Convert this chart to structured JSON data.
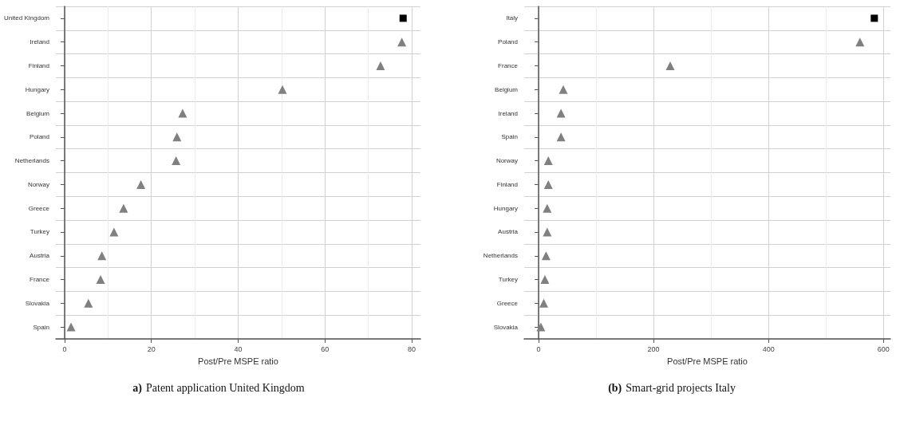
{
  "chart_data": [
    {
      "type": "scatter",
      "orientation": "horizontal",
      "title": "a) Patent application United Kingdom",
      "xlabel": "Post/Pre MSPE ratio",
      "categories": [
        "United Kingdom",
        "Ireland",
        "Finland",
        "Hungary",
        "Belgium",
        "Poland",
        "Netherlands",
        "Norway",
        "Greece",
        "Turkey",
        "Austria",
        "France",
        "Slovakia",
        "Spain"
      ],
      "series": [
        {
          "color": "#000000",
          "marker": "square",
          "values": [
            78,
            null,
            null,
            null,
            null,
            null,
            null,
            null,
            null,
            null,
            null,
            null,
            null,
            null
          ]
        },
        {
          "color": "#808080",
          "marker": "triangle",
          "values": [
            null,
            77.7,
            72.8,
            50.2,
            27.2,
            25.9,
            25.7,
            17.6,
            13.6,
            11.4,
            8.6,
            8.3,
            5.5,
            1.5
          ]
        }
      ],
      "xlim": [
        -2,
        82
      ],
      "xticks": [
        0,
        20,
        40,
        60,
        80
      ],
      "grid": true
    },
    {
      "type": "scatter",
      "orientation": "horizontal",
      "title": "(b) Smart-grid projects Italy",
      "xlabel": "Post/Pre MSPE ratio",
      "categories": [
        "Italy",
        "Poland",
        "France",
        "Belgium",
        "Ireland",
        "Spain",
        "Norway",
        "Finland",
        "Hungary",
        "Austria",
        "Netherlands",
        "Turkey",
        "Greece",
        "Slovakia"
      ],
      "series": [
        {
          "color": "#000000",
          "marker": "square",
          "values": [
            584,
            null,
            null,
            null,
            null,
            null,
            null,
            null,
            null,
            null,
            null,
            null,
            null,
            null
          ]
        },
        {
          "color": "#808080",
          "marker": "triangle",
          "values": [
            null,
            559,
            229,
            43,
            39,
            39,
            17,
            17,
            15,
            15,
            13,
            11,
            9,
            4
          ]
        }
      ],
      "xlim": [
        -25,
        612
      ],
      "xticks": [
        0,
        200,
        400,
        600
      ],
      "grid": true
    }
  ]
}
